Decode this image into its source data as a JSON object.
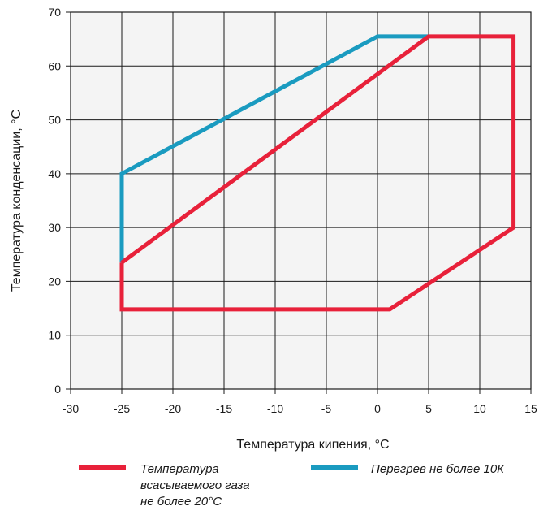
{
  "colors": {
    "red": "#e8213a",
    "blue": "#1a9bc0",
    "plot_bg": "#f4f4f4",
    "grid": "#1a1a1a"
  },
  "chart_data": {
    "type": "line",
    "xlabel": "Температура кипения, °С",
    "ylabel": "Температура конденсации, °С",
    "xlim": [
      -30,
      15
    ],
    "ylim": [
      0,
      70
    ],
    "x_ticks": [
      "-30",
      "-25",
      "-20",
      "-15",
      "-10",
      "-5",
      "0",
      "5",
      "10",
      "15"
    ],
    "y_ticks": [
      "0",
      "10",
      "20",
      "30",
      "40",
      "50",
      "60",
      "70"
    ],
    "grid": true,
    "series": [
      {
        "legend_lines": [
          "Температура",
          "всасываемого газа",
          "не более 20°С"
        ],
        "color": "#e8213a",
        "points": [
          [
            -25,
            23.5
          ],
          [
            5,
            65.5
          ],
          [
            13.3,
            65.5
          ],
          [
            13.3,
            30
          ],
          [
            1.2,
            14.8
          ],
          [
            -25,
            14.8
          ],
          [
            -25,
            23.5
          ]
        ]
      },
      {
        "legend_lines": [
          "Перегрев не более 10К"
        ],
        "color": "#1a9bc0",
        "points": [
          [
            -25,
            23.5
          ],
          [
            -25,
            40
          ],
          [
            0,
            65.5
          ],
          [
            5,
            65.5
          ]
        ]
      }
    ],
    "legend_position": "bottom"
  }
}
